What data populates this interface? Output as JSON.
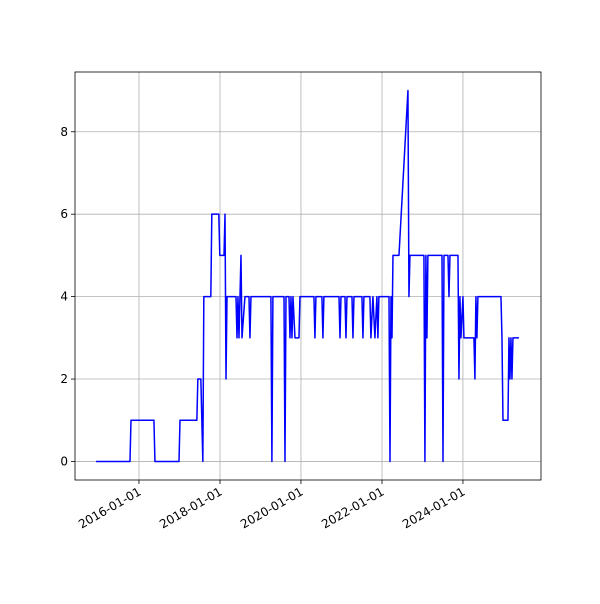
{
  "chart_data": {
    "type": "line",
    "x": [
      "2014-12-09",
      "2015-10-12",
      "2015-10-21",
      "2016-05-15",
      "2016-05-24",
      "2016-12-27",
      "2017-01-05",
      "2017-06-06",
      "2017-06-15",
      "2017-07-12",
      "2017-07-30",
      "2017-08-08",
      "2017-10-10",
      "2017-10-19",
      "2017-12-21",
      "2017-12-30",
      "2018-02-06",
      "2018-02-15",
      "2018-02-24",
      "2018-03-05",
      "2018-05-25",
      "2018-06-03",
      "2018-06-12",
      "2018-06-21",
      "2018-07-09",
      "2018-07-18",
      "2018-08-14",
      "2018-09-19",
      "2018-09-28",
      "2018-10-07",
      "2019-04-05",
      "2019-04-14",
      "2019-04-23",
      "2019-08-01",
      "2019-08-10",
      "2019-08-19",
      "2019-09-15",
      "2019-09-24",
      "2019-10-03",
      "2019-10-12",
      "2019-10-21",
      "2019-11-08",
      "2019-12-14",
      "2019-12-23",
      "2020-04-27",
      "2020-05-06",
      "2020-05-15",
      "2020-07-08",
      "2020-07-17",
      "2020-07-26",
      "2020-12-09",
      "2020-12-18",
      "2020-12-27",
      "2021-02-01",
      "2021-02-10",
      "2021-02-19",
      "2021-04-05",
      "2021-04-14",
      "2021-04-23",
      "2021-07-04",
      "2021-07-13",
      "2021-07-22",
      "2021-09-14",
      "2021-09-23",
      "2021-10-11",
      "2021-10-29",
      "2021-11-16",
      "2021-11-25",
      "2021-12-04",
      "2022-03-05",
      "2022-03-14",
      "2022-03-23",
      "2022-04-01",
      "2022-04-10",
      "2022-06-03",
      "2022-08-23",
      "2022-09-01",
      "2022-09-10",
      "2023-01-14",
      "2023-01-23",
      "2023-02-01",
      "2023-02-10",
      "2023-02-19",
      "2023-06-26",
      "2023-07-05",
      "2023-07-14",
      "2023-08-19",
      "2023-08-28",
      "2023-09-06",
      "2023-11-17",
      "2023-11-26",
      "2023-12-05",
      "2023-12-14",
      "2024-01-01",
      "2024-01-10",
      "2024-04-09",
      "2024-04-18",
      "2024-04-27",
      "2024-05-06",
      "2024-05-15",
      "2024-12-09",
      "2024-12-18",
      "2024-12-27",
      "2025-02-10",
      "2025-02-19",
      "2025-02-28",
      "2025-03-09",
      "2025-03-18",
      "2025-03-27",
      "2025-05-20"
    ],
    "series": [
      {
        "color": "#0000ff",
        "values": [
          0,
          0,
          1,
          1,
          0,
          0,
          1,
          1,
          2,
          2,
          0,
          4,
          4,
          6,
          6,
          5,
          5,
          6,
          2,
          4,
          4,
          3,
          4,
          3,
          5,
          3,
          4,
          4,
          3,
          4,
          4,
          0,
          4,
          4,
          0,
          4,
          4,
          3,
          4,
          3,
          4,
          3,
          3,
          4,
          4,
          3,
          4,
          4,
          3,
          4,
          4,
          3,
          4,
          4,
          3,
          4,
          4,
          3,
          4,
          4,
          3,
          4,
          4,
          3,
          4,
          3,
          4,
          3,
          4,
          4,
          0,
          4,
          3,
          5,
          5,
          9,
          4,
          5,
          5,
          0,
          5,
          3,
          5,
          5,
          0,
          5,
          5,
          4,
          5,
          5,
          2,
          4,
          3,
          4,
          3,
          3,
          2,
          4,
          3,
          4,
          4,
          3,
          1,
          1,
          3,
          2,
          3,
          2,
          3,
          3
        ]
      }
    ],
    "xlim": [
      "2014-06-03",
      "2025-12-05"
    ],
    "xticks": [
      "2016-01-01",
      "2018-01-01",
      "2020-01-01",
      "2022-01-01",
      "2024-01-01"
    ],
    "ylim": [
      -0.45,
      9.45
    ],
    "yticks": [
      0,
      2,
      4,
      6,
      8
    ],
    "grid": true
  }
}
